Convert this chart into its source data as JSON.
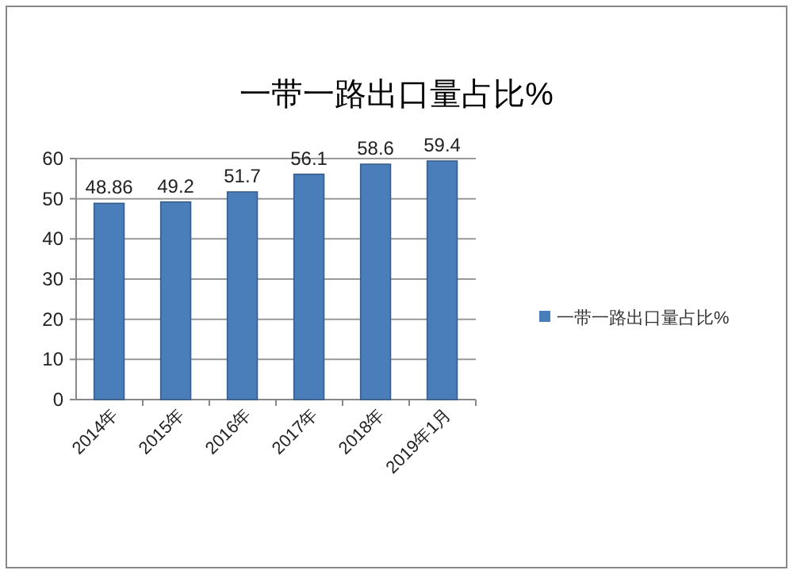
{
  "chart_data": {
    "type": "bar",
    "title": "一带一路出口量占比%",
    "categories": [
      "2014年",
      "2015年",
      "2016年",
      "2017年",
      "2018年",
      "2019年1月"
    ],
    "series": [
      {
        "name": "一带一路出口量占比%",
        "color": "#4a7ebb",
        "values": [
          48.86,
          49.2,
          51.7,
          56.1,
          58.6,
          59.4
        ]
      }
    ],
    "ylim": [
      0,
      60
    ],
    "yticks": [
      0,
      10,
      20,
      30,
      40,
      50,
      60
    ],
    "grid": "y",
    "legend": "right",
    "data_labels": true
  }
}
